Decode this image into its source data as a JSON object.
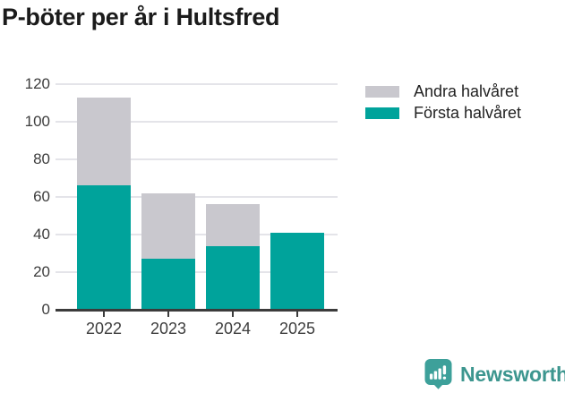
{
  "title": "P-böter per år i Hultsfred",
  "chart_data": {
    "type": "bar",
    "stacked": true,
    "title": "P-böter per år i Hultsfred",
    "categories": [
      "2022",
      "2023",
      "2024",
      "2025"
    ],
    "series": [
      {
        "name": "Första halvåret",
        "color": "#00a39b",
        "values": [
          66,
          27,
          34,
          41
        ]
      },
      {
        "name": "Andra halvåret",
        "color": "#c9c8ce",
        "values": [
          47,
          35,
          22,
          0
        ]
      }
    ],
    "stack_totals": [
      113,
      62,
      56,
      41
    ],
    "legend_order": [
      "Andra halvåret",
      "Första halvåret"
    ],
    "legend_position": "top-right",
    "xlabel": "",
    "ylabel": "",
    "ylim": [
      0,
      120
    ],
    "yticks": [
      0,
      20,
      40,
      60,
      80,
      100,
      120
    ],
    "grid": true
  },
  "colors": {
    "first_half": "#00a39b",
    "second_half": "#c9c8ce",
    "gridline": "#e4e4e9",
    "axis": "#3b3b3b",
    "title_text": "#1b1b1b",
    "brand_teal": "#3d968f",
    "logo_teal": "#3da09a"
  },
  "footer": {
    "brand": "Newsworthy",
    "logo_icon": "bar-chart-speech-bubble-icon"
  }
}
